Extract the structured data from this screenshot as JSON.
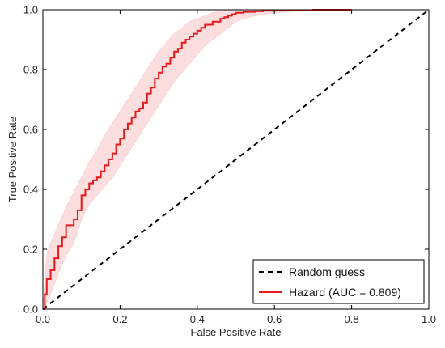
{
  "chart_data": {
    "type": "line",
    "title": "",
    "xlabel": "False Positive Rate",
    "ylabel": "True Positive Rate",
    "xlim": [
      0,
      1
    ],
    "ylim": [
      0,
      1
    ],
    "xticks": [
      "0.0",
      "0.2",
      "0.4",
      "0.6",
      "0.8",
      "1.0"
    ],
    "yticks": [
      "0.0",
      "0.2",
      "0.4",
      "0.6",
      "0.8",
      "1.0"
    ],
    "grid": false,
    "legend_position": "bottom-right",
    "series": [
      {
        "name": "Random guess",
        "style": "dashed",
        "color": "#000000",
        "x": [
          0,
          1
        ],
        "y": [
          0,
          1
        ]
      },
      {
        "name": "Hazard (AUC = 0.809)",
        "style": "solid",
        "color": "#e8191c",
        "x": [
          0.0,
          0.005,
          0.01,
          0.02,
          0.03,
          0.04,
          0.05,
          0.06,
          0.08,
          0.09,
          0.1,
          0.11,
          0.12,
          0.13,
          0.14,
          0.15,
          0.16,
          0.17,
          0.18,
          0.19,
          0.2,
          0.21,
          0.22,
          0.23,
          0.24,
          0.25,
          0.26,
          0.27,
          0.28,
          0.29,
          0.3,
          0.31,
          0.32,
          0.33,
          0.34,
          0.35,
          0.36,
          0.37,
          0.38,
          0.39,
          0.4,
          0.41,
          0.42,
          0.43,
          0.44,
          0.45,
          0.46,
          0.47,
          0.48,
          0.49,
          0.5,
          0.52,
          0.55,
          0.57,
          0.6,
          0.7,
          0.8
        ],
        "y": [
          0.0,
          0.05,
          0.1,
          0.13,
          0.17,
          0.21,
          0.24,
          0.28,
          0.3,
          0.33,
          0.38,
          0.4,
          0.42,
          0.43,
          0.44,
          0.46,
          0.48,
          0.5,
          0.52,
          0.55,
          0.57,
          0.6,
          0.62,
          0.64,
          0.66,
          0.67,
          0.69,
          0.72,
          0.74,
          0.77,
          0.79,
          0.81,
          0.82,
          0.84,
          0.86,
          0.87,
          0.89,
          0.9,
          0.91,
          0.92,
          0.93,
          0.94,
          0.95,
          0.95,
          0.96,
          0.96,
          0.97,
          0.975,
          0.98,
          0.985,
          0.99,
          0.993,
          0.995,
          0.997,
          0.998,
          1.0,
          1.0
        ]
      }
    ],
    "confidence_band": {
      "color": "#fcdede",
      "x": [
        0.0,
        0.01,
        0.02,
        0.04,
        0.06,
        0.08,
        0.1,
        0.12,
        0.14,
        0.16,
        0.18,
        0.2,
        0.22,
        0.24,
        0.26,
        0.28,
        0.3,
        0.32,
        0.34,
        0.36,
        0.38,
        0.4,
        0.42,
        0.44,
        0.46,
        0.48,
        0.5,
        0.52,
        0.55,
        0.6,
        0.7,
        0.8
      ],
      "lower": [
        0.0,
        0.02,
        0.05,
        0.12,
        0.18,
        0.22,
        0.3,
        0.35,
        0.38,
        0.41,
        0.44,
        0.48,
        0.52,
        0.56,
        0.6,
        0.64,
        0.68,
        0.72,
        0.76,
        0.79,
        0.82,
        0.85,
        0.88,
        0.9,
        0.92,
        0.94,
        0.96,
        0.97,
        0.98,
        0.99,
        1.0,
        1.0
      ],
      "upper": [
        0.0,
        0.18,
        0.22,
        0.28,
        0.34,
        0.39,
        0.44,
        0.49,
        0.53,
        0.58,
        0.62,
        0.66,
        0.7,
        0.74,
        0.78,
        0.82,
        0.86,
        0.89,
        0.92,
        0.94,
        0.96,
        0.97,
        0.98,
        0.99,
        0.995,
        1.0,
        1.0,
        1.0,
        1.0,
        1.0,
        1.0,
        1.0
      ]
    }
  }
}
